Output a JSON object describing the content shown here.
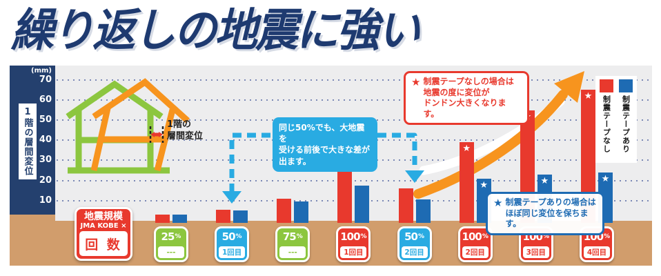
{
  "page": {
    "title": "繰り返しの地震に強い"
  },
  "colors": {
    "title_navy": "#1e3a70",
    "axis_band_navy": "#24406e",
    "plot_bg": "#ededee",
    "ground_tan": "#d19d6c",
    "bar_red": "#e8392d",
    "bar_blue": "#1e6bb3",
    "cyan": "#29abe2",
    "green": "#8cc63f",
    "orange": "#f7941e"
  },
  "y_axis": {
    "unit": "(mm)",
    "ticks": [
      70,
      60,
      50,
      40,
      30,
      20,
      10
    ],
    "label": "1階の層間変位"
  },
  "legend": {
    "without_label": "制震テープなし",
    "with_label": "制震テープあり"
  },
  "annotations": {
    "house_label": [
      "1階の",
      "層間変位"
    ],
    "bubble_lines": [
      "同じ50%でも、大地震を",
      "受ける前後で大きな差が",
      "出ます。"
    ],
    "no_tape_callout": {
      "star": "★",
      "lines": [
        "制震テープなしの場合は",
        "地震の度に変位が",
        "ドンドン大きくなります。"
      ]
    },
    "with_tape_callout": {
      "star": "★",
      "lines": [
        "制震テープありの場合は",
        "ほぼ同じ変位を保ちます。"
      ]
    }
  },
  "x_axis_badge": {
    "line1": "地震規模",
    "line2": "JMA KOBE ×",
    "count_label": "回 数"
  },
  "chart_data": {
    "type": "bar",
    "title": "繰り返しの地震に強い",
    "ylabel": "1階の層間変位",
    "y_unit": "mm",
    "ylim": [
      0,
      75
    ],
    "grid": "dotted horizontal lines every 10mm",
    "legend_position": "top-right",
    "percent_sign": "%",
    "star_marker": "★",
    "categories": [
      "25% ---",
      "50% 1回目",
      "75% ---",
      "100% 1回目",
      "50% 2回目",
      "100% 2回目",
      "100% 3回目",
      "100% 4回目"
    ],
    "series": [
      {
        "name": "制震テープなし",
        "color": "#e8392d",
        "values": [
          3,
          5.5,
          11,
          29,
          16,
          39,
          55,
          65
        ]
      },
      {
        "name": "制震テープあり",
        "color": "#1e6bb3",
        "values": [
          3,
          5,
          9.5,
          17.5,
          10.5,
          21,
          23,
          24
        ]
      }
    ],
    "groups": [
      {
        "scale": "25",
        "count": "---",
        "badge_color": "#8cc63f",
        "star": false
      },
      {
        "scale": "50",
        "count": "1回目",
        "badge_color": "#29abe2",
        "star": false
      },
      {
        "scale": "75",
        "count": "---",
        "badge_color": "#8cc63f",
        "star": false
      },
      {
        "scale": "100",
        "count": "1回目",
        "badge_color": "#e8392d",
        "star": false
      },
      {
        "scale": "50",
        "count": "2回目",
        "badge_color": "#29abe2",
        "star": false
      },
      {
        "scale": "100",
        "count": "2回目",
        "badge_color": "#e8392d",
        "star": true
      },
      {
        "scale": "100",
        "count": "3回目",
        "badge_color": "#e8392d",
        "star": true
      },
      {
        "scale": "100",
        "count": "4回目",
        "badge_color": "#e8392d",
        "star": true
      }
    ]
  }
}
